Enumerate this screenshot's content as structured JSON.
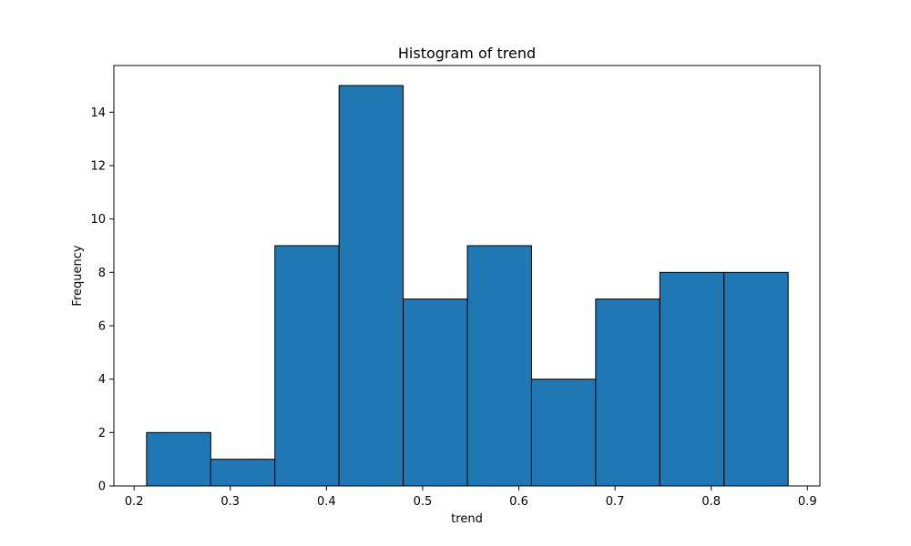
{
  "chart_data": {
    "type": "bar",
    "title": "Histogram of trend",
    "xlabel": "trend",
    "ylabel": "Frequency",
    "xlim": [
      0.179,
      0.913
    ],
    "ylim": [
      0,
      15.75
    ],
    "x_ticks": [
      0.2,
      0.3,
      0.4,
      0.5,
      0.6,
      0.7,
      0.8,
      0.9
    ],
    "x_tick_labels": [
      "0.2",
      "0.3",
      "0.4",
      "0.5",
      "0.6",
      "0.7",
      "0.8",
      "0.9"
    ],
    "y_ticks": [
      0,
      2,
      4,
      6,
      8,
      10,
      12,
      14
    ],
    "y_tick_labels": [
      "0",
      "2",
      "4",
      "6",
      "8",
      "10",
      "12",
      "14"
    ],
    "bin_edges": [
      0.213,
      0.2797,
      0.3464,
      0.4131,
      0.4798,
      0.5465,
      0.6132,
      0.6799,
      0.7466,
      0.8133,
      0.88
    ],
    "values": [
      2,
      1,
      9,
      15,
      7,
      9,
      4,
      7,
      8,
      8
    ],
    "bar_color": "#1f77b4",
    "edge_color": "#000000",
    "grid": false,
    "legend": "none"
  }
}
